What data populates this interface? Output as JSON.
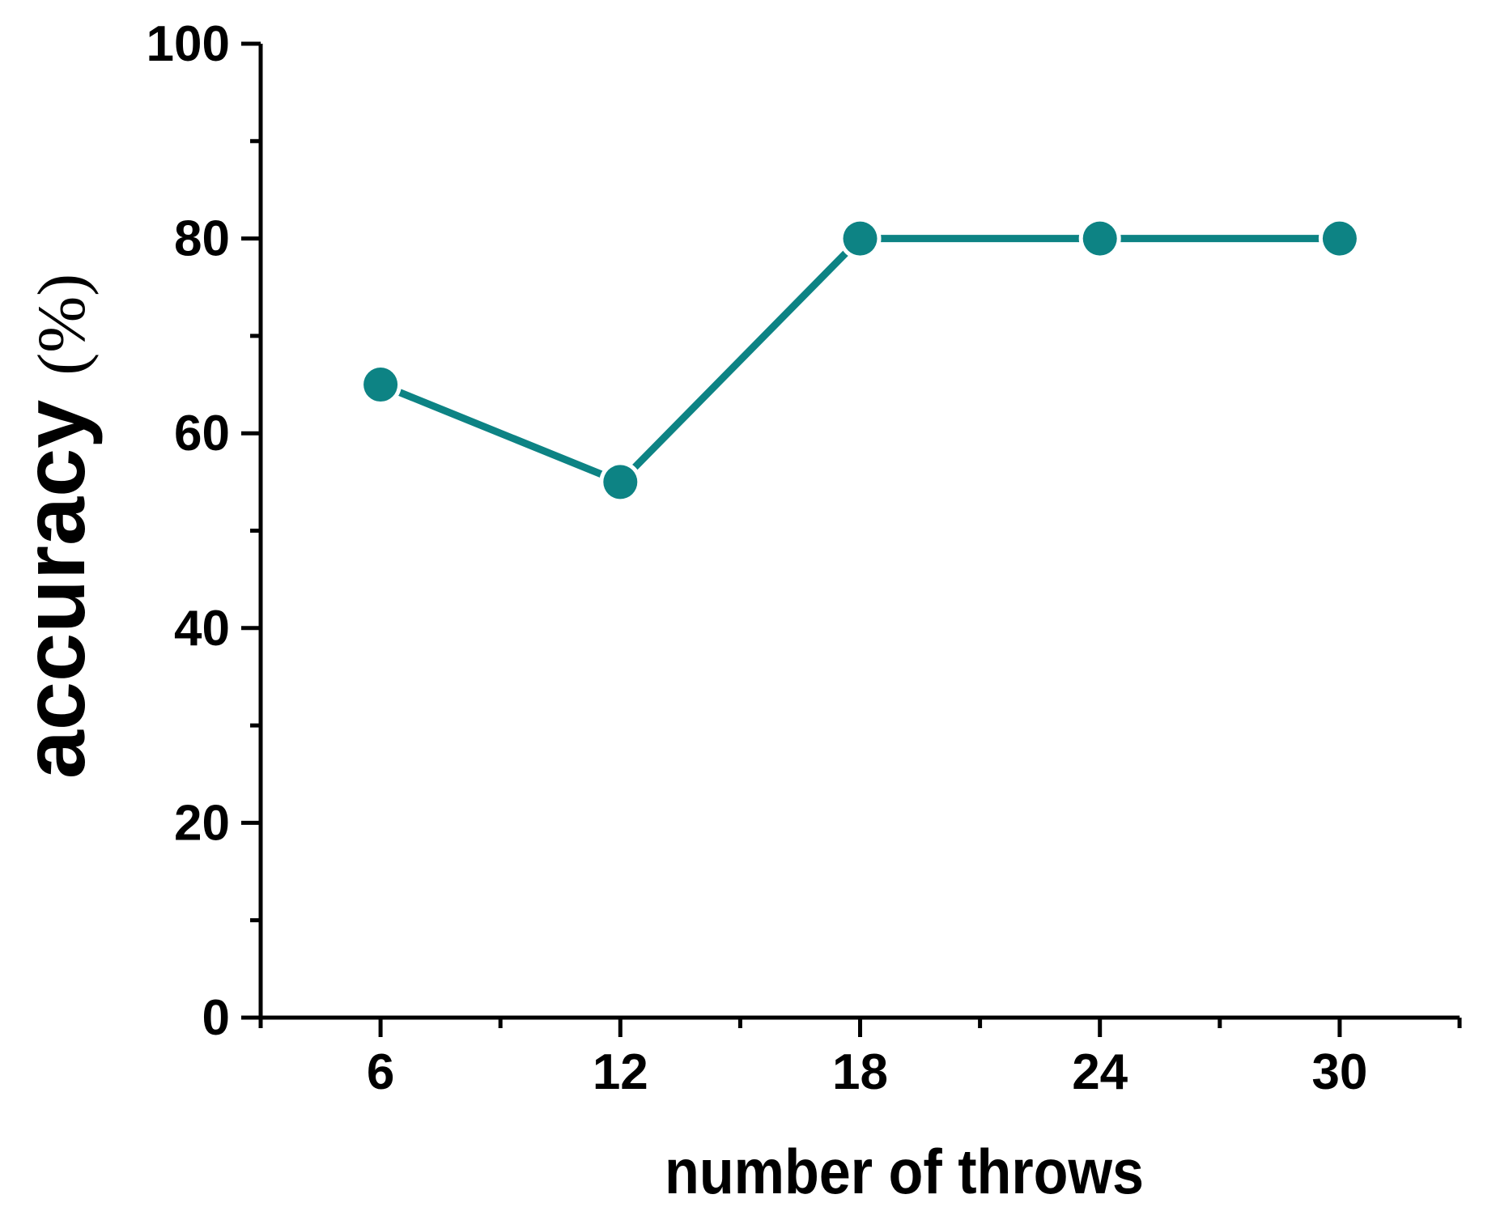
{
  "chart_data": {
    "type": "line",
    "title": "",
    "xlabel": "number of throws",
    "ylabel": "accuracy (%)",
    "ylabel_parts": [
      "accuracy ",
      "(%)"
    ],
    "x": [
      6,
      12,
      18,
      24,
      30
    ],
    "series": [
      {
        "name": "accuracy",
        "values": [
          65,
          55,
          80,
          80,
          80
        ]
      }
    ],
    "xlim": [
      3,
      33
    ],
    "ylim": [
      0,
      100
    ],
    "x_major_ticks": [
      6,
      12,
      18,
      24,
      30
    ],
    "x_tick_labels": [
      "6",
      "12",
      "18",
      "24",
      "30"
    ],
    "x_minor_ticks": [
      3,
      9,
      15,
      21,
      27,
      33
    ],
    "y_major_ticks": [
      0,
      20,
      40,
      60,
      80,
      100
    ],
    "y_tick_labels": [
      "0",
      "20",
      "40",
      "60",
      "80",
      "100"
    ],
    "y_minor_ticks": [
      10,
      30,
      50,
      70,
      90
    ],
    "grid": false,
    "legend": "none",
    "line_color": "#0d8384",
    "marker": "circle",
    "marker_color": "#0d8384",
    "marker_halo_color": "#ffffff",
    "axis_color": "#000000",
    "background_color": "#ffffff"
  }
}
